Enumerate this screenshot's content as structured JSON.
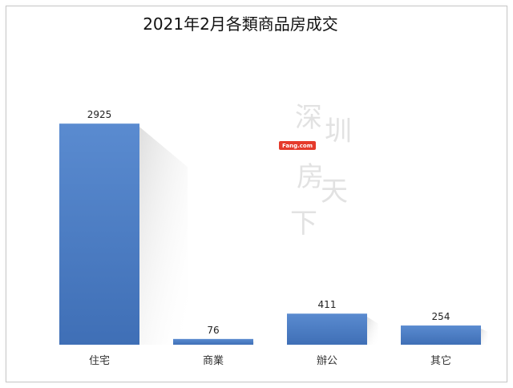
{
  "chart_data": {
    "type": "bar",
    "title": "2021年2月各類商品房成交",
    "categories": [
      "住宅",
      "商業",
      "辦公",
      "其它"
    ],
    "values": [
      2925,
      76,
      411,
      254
    ],
    "xlabel": "",
    "ylabel": "",
    "ylim": [
      0,
      3500
    ],
    "grid": false,
    "legend": "none",
    "colors": {
      "bar": "#4a7bc0",
      "bar_dark": "#3a65a6"
    }
  },
  "watermark": {
    "site": "Fang.com",
    "text": "深圳房天下"
  }
}
